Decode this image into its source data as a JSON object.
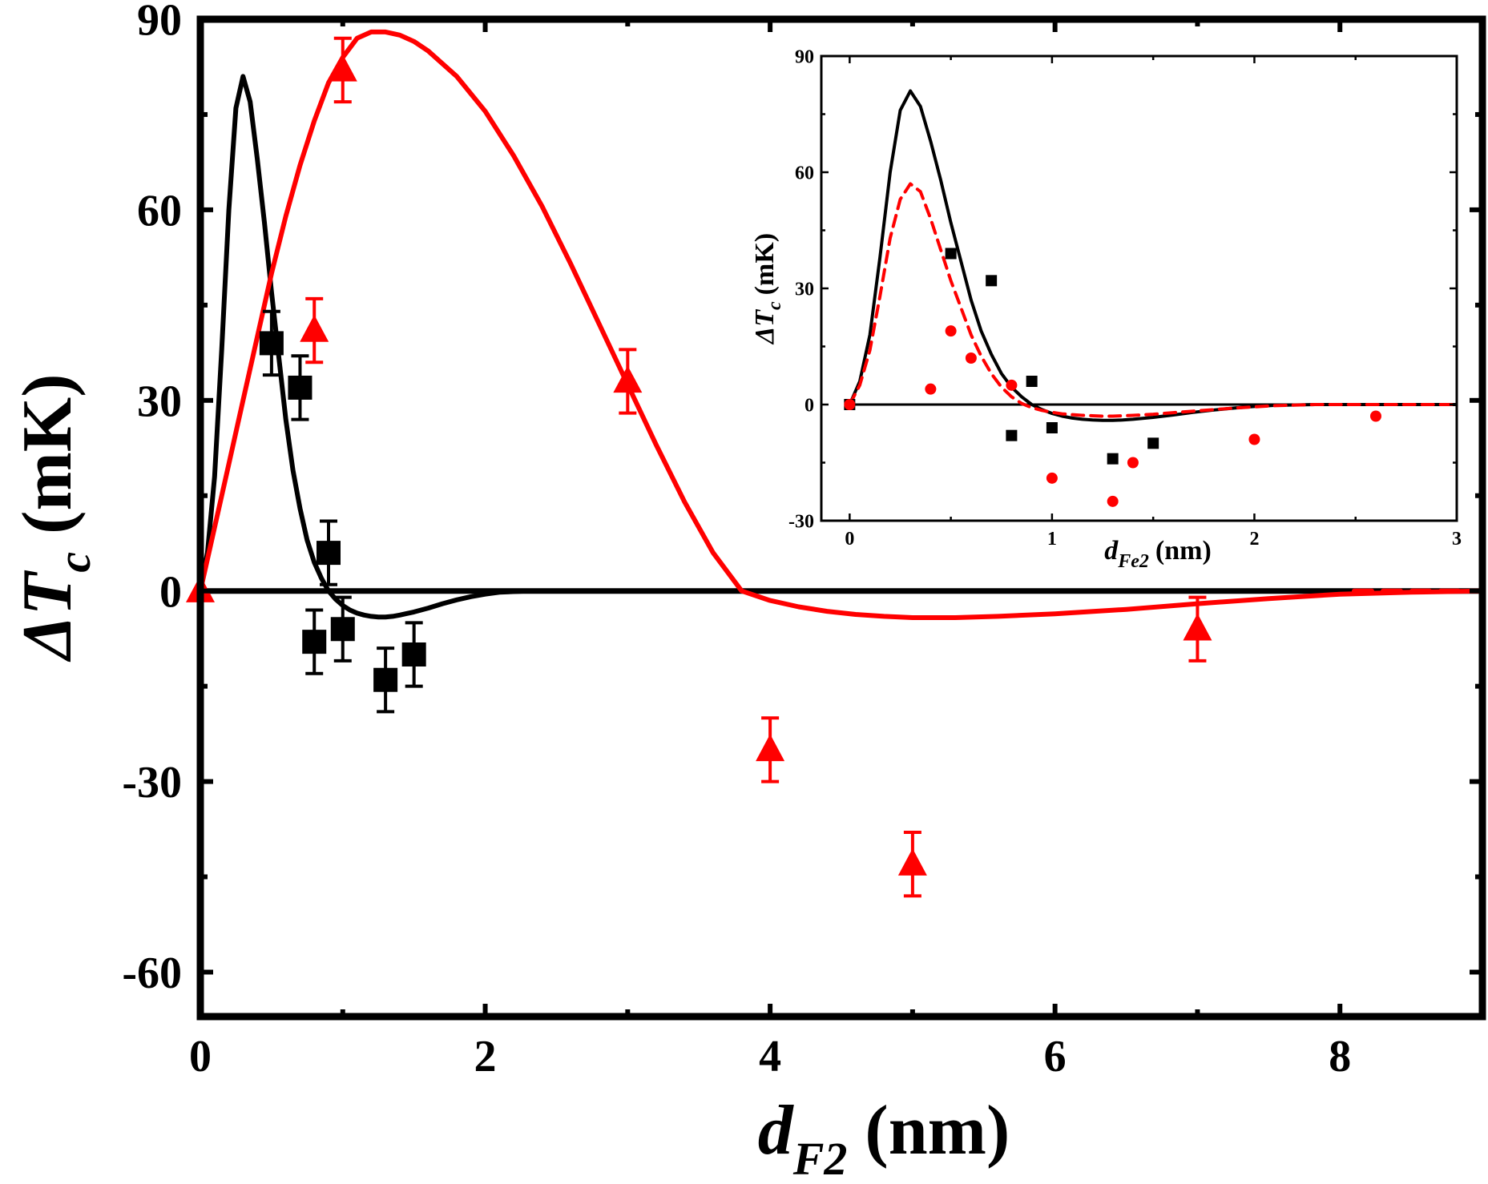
{
  "colors": {
    "black": "#000000",
    "red": "#ff0000"
  },
  "chart_data": [
    {
      "type": "scatter",
      "panel": "main",
      "xlabel": {
        "main": "d",
        "sub": "F2",
        "unit": "(nm)"
      },
      "ylabel": {
        "delta": "ΔT",
        "sub": "c",
        "unit": "(mK)"
      },
      "xlim": [
        0,
        9
      ],
      "ylim": [
        -67,
        90
      ],
      "xticks": [
        0,
        2,
        4,
        6,
        8
      ],
      "xtick_labels": [
        "0",
        "2",
        "4",
        "6",
        "8"
      ],
      "yticks": [
        -60,
        -30,
        0,
        30,
        60,
        90
      ],
      "ytick_labels": [
        "-60",
        "-30",
        "0",
        "30",
        "60",
        "90"
      ],
      "grid": false,
      "legend": "none",
      "zero_line": true,
      "series": [
        {
          "kind": "points",
          "marker": "square",
          "color": "#000000",
          "x": [
            0.5,
            0.7,
            0.8,
            0.9,
            1.0,
            1.3,
            1.5
          ],
          "y": [
            39,
            32,
            -8,
            6,
            -6,
            -14,
            -10
          ],
          "err": [
            5,
            5,
            5,
            5,
            5,
            5,
            5
          ]
        },
        {
          "kind": "points",
          "marker": "triangle",
          "color": "#ff0000",
          "x": [
            0.0,
            0.8,
            1.0,
            3.0,
            4.0,
            5.0,
            7.0
          ],
          "y": [
            0,
            41,
            82,
            33,
            -25,
            -43,
            -6
          ],
          "err": [
            0,
            5,
            5,
            5,
            5,
            5,
            5
          ]
        },
        {
          "kind": "curve",
          "style": "solid",
          "color": "#000000",
          "x": [
            0,
            0.05,
            0.1,
            0.15,
            0.2,
            0.25,
            0.3,
            0.35,
            0.4,
            0.45,
            0.5,
            0.55,
            0.6,
            0.65,
            0.7,
            0.75,
            0.8,
            0.85,
            0.9,
            0.95,
            1.0,
            1.05,
            1.1,
            1.15,
            1.2,
            1.25,
            1.3,
            1.35,
            1.4,
            1.5,
            1.6,
            1.7,
            1.8,
            1.9,
            2.0,
            2.1,
            2.3,
            2.6,
            3.0
          ],
          "y": [
            0,
            6,
            18,
            38,
            60,
            76,
            81,
            77,
            68,
            58,
            47,
            37,
            27,
            19,
            13,
            8,
            4.5,
            2,
            0,
            -1.3,
            -2.3,
            -3,
            -3.5,
            -3.8,
            -4,
            -4.1,
            -4.1,
            -4.0,
            -3.8,
            -3.3,
            -2.7,
            -2.0,
            -1.4,
            -0.9,
            -0.5,
            -0.2,
            0,
            0,
            0
          ]
        },
        {
          "kind": "curve",
          "style": "solid",
          "color": "#ff0000",
          "x": [
            0,
            0.1,
            0.2,
            0.3,
            0.4,
            0.5,
            0.6,
            0.7,
            0.8,
            0.9,
            1.0,
            1.1,
            1.2,
            1.3,
            1.4,
            1.5,
            1.6,
            1.8,
            2.0,
            2.2,
            2.4,
            2.6,
            2.8,
            3.0,
            3.2,
            3.4,
            3.6,
            3.8,
            4.0,
            4.2,
            4.4,
            4.6,
            4.8,
            5.0,
            5.3,
            5.6,
            6.0,
            6.5,
            7.0,
            7.5,
            8.0,
            8.5,
            9.0
          ],
          "y": [
            0,
            10,
            20,
            30,
            40,
            50,
            59,
            67,
            74,
            80,
            84,
            87,
            88,
            88,
            87.5,
            86.5,
            85,
            81,
            75.5,
            68.5,
            60.5,
            51.5,
            42,
            32.5,
            23,
            14,
            6,
            0,
            -1.5,
            -2.5,
            -3.2,
            -3.7,
            -4.0,
            -4.2,
            -4.2,
            -4.0,
            -3.6,
            -2.9,
            -2.0,
            -1.2,
            -0.5,
            -0.2,
            0
          ]
        },
        {
          "kind": "curve",
          "style": "dash",
          "color": "#ff0000",
          "x": [
            8.1,
            9.0
          ],
          "y": [
            0,
            0
          ]
        }
      ]
    },
    {
      "type": "scatter",
      "panel": "inset",
      "xlabel": {
        "main": "d",
        "sub": "Fe2",
        "unit": "(nm)"
      },
      "ylabel": {
        "delta": "ΔT",
        "sub": "c",
        "unit": "(mK)"
      },
      "xlim": [
        -0.14,
        3
      ],
      "ylim": [
        -30,
        90
      ],
      "xticks": [
        0,
        1,
        2,
        3
      ],
      "xtick_labels": [
        "0",
        "1",
        "2",
        "3"
      ],
      "yticks": [
        -30,
        0,
        30,
        60,
        90
      ],
      "ytick_labels": [
        "-30",
        "0",
        "30",
        "60",
        "90"
      ],
      "grid": false,
      "legend": "none",
      "zero_line": true,
      "series": [
        {
          "kind": "points",
          "marker": "square",
          "color": "#000000",
          "x": [
            0.0,
            0.5,
            0.7,
            0.8,
            0.9,
            1.0,
            1.3,
            1.5
          ],
          "y": [
            0,
            39,
            32,
            -8,
            6,
            -6,
            -14,
            -10
          ]
        },
        {
          "kind": "points",
          "marker": "circle",
          "color": "#ff0000",
          "x": [
            0.0,
            0.4,
            0.5,
            0.6,
            0.8,
            1.0,
            1.3,
            1.4,
            2.0,
            2.6
          ],
          "y": [
            0,
            4,
            19,
            12,
            5,
            -19,
            -25,
            -15,
            -9,
            -3
          ]
        },
        {
          "kind": "curve",
          "style": "solid",
          "color": "#000000",
          "x": [
            0,
            0.05,
            0.1,
            0.15,
            0.2,
            0.25,
            0.3,
            0.35,
            0.4,
            0.45,
            0.5,
            0.55,
            0.6,
            0.65,
            0.7,
            0.75,
            0.8,
            0.85,
            0.9,
            0.95,
            1.0,
            1.05,
            1.1,
            1.15,
            1.2,
            1.25,
            1.3,
            1.35,
            1.4,
            1.5,
            1.6,
            1.7,
            1.8,
            1.9,
            2.0,
            2.1,
            2.3,
            2.6,
            3.0
          ],
          "y": [
            0,
            6,
            18,
            38,
            60,
            76,
            81,
            77,
            68,
            58,
            47,
            37,
            27,
            19,
            13,
            8,
            4.5,
            2,
            0,
            -1.3,
            -2.3,
            -3,
            -3.5,
            -3.8,
            -4,
            -4.1,
            -4.1,
            -4.0,
            -3.8,
            -3.3,
            -2.7,
            -2.0,
            -1.4,
            -0.9,
            -0.5,
            -0.2,
            0,
            0,
            0
          ]
        },
        {
          "kind": "curve",
          "style": "dash",
          "color": "#ff0000",
          "x": [
            0,
            0.05,
            0.1,
            0.15,
            0.2,
            0.25,
            0.3,
            0.35,
            0.4,
            0.45,
            0.5,
            0.55,
            0.6,
            0.65,
            0.7,
            0.75,
            0.8,
            0.85,
            0.9,
            0.95,
            1.0,
            1.05,
            1.1,
            1.15,
            1.2,
            1.25,
            1.3,
            1.35,
            1.4,
            1.5,
            1.6,
            1.7,
            1.8,
            1.9,
            2.0,
            2.1,
            2.3,
            2.6,
            3.0
          ],
          "y": [
            0,
            5,
            14,
            28,
            43,
            53,
            57,
            55,
            48,
            40,
            32,
            25,
            18,
            12.5,
            8,
            4.5,
            2,
            0.3,
            -0.8,
            -1.5,
            -2,
            -2.4,
            -2.6,
            -2.8,
            -2.9,
            -3,
            -3,
            -2.9,
            -2.8,
            -2.5,
            -2.1,
            -1.7,
            -1.3,
            -0.9,
            -0.6,
            -0.3,
            0,
            0,
            0
          ]
        }
      ]
    }
  ]
}
